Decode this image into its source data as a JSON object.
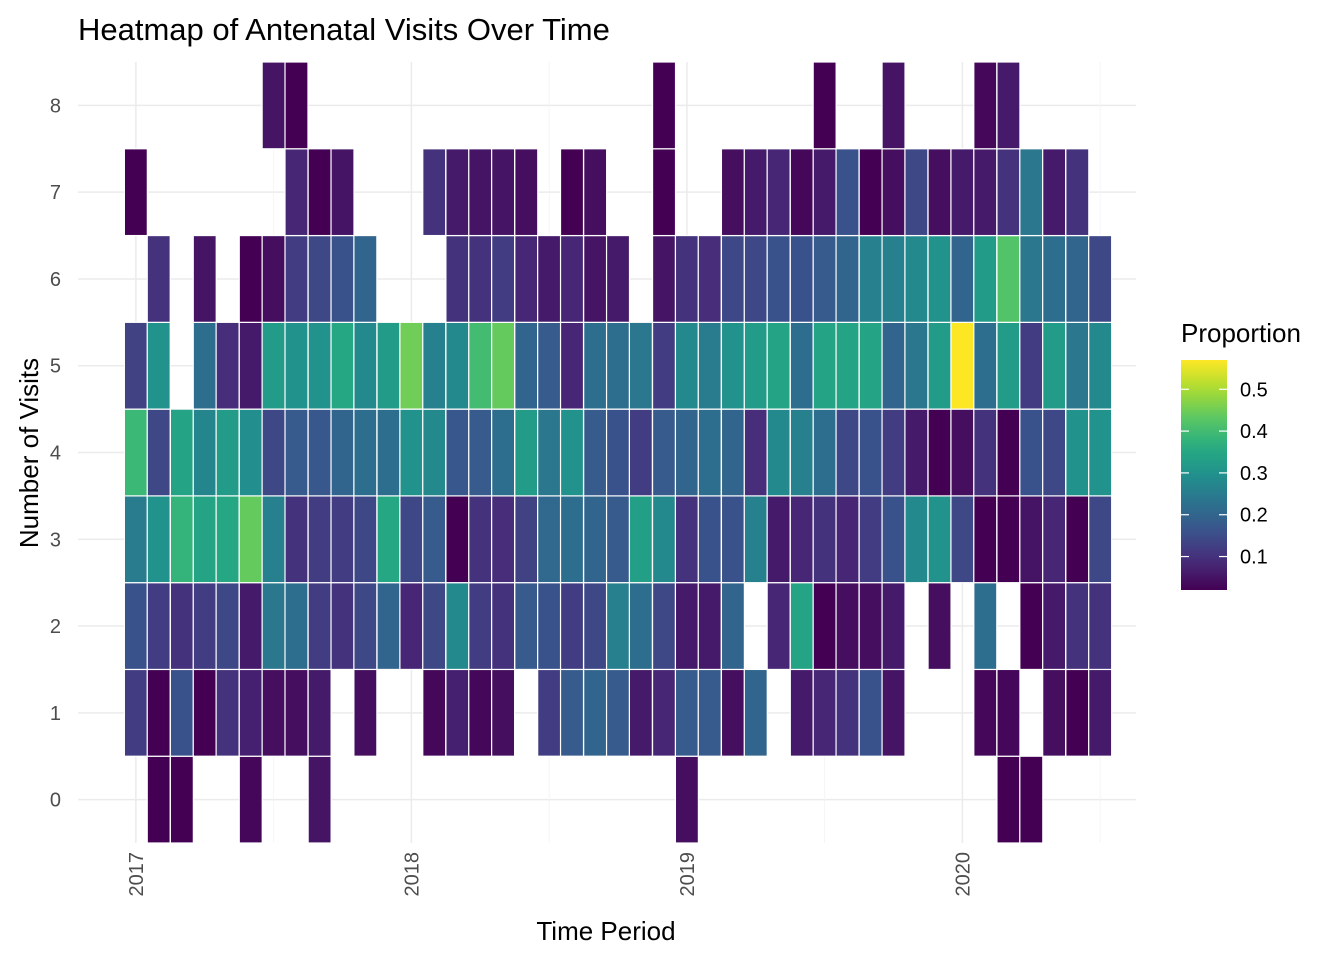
{
  "chart_data": {
    "type": "heatmap",
    "title": "Heatmap of Antenatal Visits Over Time",
    "xlabel": "Time Period",
    "ylabel": "Number of Visits",
    "x_tick_labels": [
      "2017",
      "2018",
      "2019",
      "2020"
    ],
    "x_tick_values": [
      2017.0,
      2018.0,
      2019.0,
      2020.0
    ],
    "y_tick_labels": [
      "0",
      "1",
      "2",
      "3",
      "4",
      "5",
      "6",
      "7",
      "8"
    ],
    "y_values": [
      0,
      1,
      2,
      3,
      4,
      5,
      6,
      7,
      8
    ],
    "xlim": [
      2016.79,
      2020.63
    ],
    "ylim": [
      -0.5,
      8.5
    ],
    "x_step": 0.0833333,
    "legend": {
      "title": "Proportion",
      "position": "right",
      "colormap": "viridis",
      "range": [
        0.02,
        0.57
      ],
      "tick_labels": [
        "0.1",
        "0.2",
        "0.3",
        "0.4",
        "0.5"
      ],
      "tick_values": [
        0.1,
        0.2,
        0.3,
        0.4,
        0.5
      ]
    },
    "grid": true,
    "x": [
      2017.0,
      2017.083,
      2017.167,
      2017.25,
      2017.333,
      2017.417,
      2017.5,
      2017.583,
      2017.667,
      2017.75,
      2017.833,
      2017.917,
      2018.0,
      2018.083,
      2018.167,
      2018.25,
      2018.333,
      2018.417,
      2018.5,
      2018.583,
      2018.667,
      2018.75,
      2018.833,
      2018.917,
      2019.0,
      2019.083,
      2019.167,
      2019.25,
      2019.333,
      2019.417,
      2019.5,
      2019.583,
      2019.667,
      2019.75,
      2019.833,
      2019.917,
      2020.0,
      2020.083,
      2020.167,
      2020.25,
      2020.333,
      2020.417,
      2020.5
    ],
    "values": [
      [
        null,
        0.12,
        0.16,
        0.25,
        0.39,
        0.13,
        null,
        0.02,
        null
      ],
      [
        0.02,
        0.02,
        0.12,
        0.3,
        0.14,
        0.3,
        0.1,
        null,
        null
      ],
      [
        0.02,
        0.16,
        0.1,
        0.38,
        0.34,
        null,
        null,
        null,
        null
      ],
      [
        null,
        0.02,
        0.12,
        0.34,
        0.27,
        0.22,
        0.05,
        null,
        null
      ],
      [
        null,
        0.1,
        0.14,
        0.35,
        0.32,
        0.09,
        null,
        null,
        null
      ],
      [
        0.03,
        0.07,
        0.06,
        0.44,
        0.29,
        0.06,
        0.02,
        null,
        null
      ],
      [
        null,
        0.04,
        0.24,
        0.26,
        0.14,
        0.32,
        0.04,
        null,
        0.05
      ],
      [
        null,
        0.04,
        0.22,
        0.1,
        0.18,
        0.3,
        0.12,
        0.08,
        0.02
      ],
      [
        0.05,
        0.06,
        0.12,
        0.12,
        0.17,
        0.3,
        0.14,
        0.02,
        null
      ],
      [
        null,
        null,
        0.1,
        0.12,
        0.2,
        0.35,
        0.16,
        0.05,
        null
      ],
      [
        null,
        0.04,
        0.14,
        0.14,
        0.22,
        0.28,
        0.2,
        null,
        null
      ],
      [
        null,
        null,
        0.2,
        0.35,
        0.22,
        0.32,
        null,
        null,
        null
      ],
      [
        null,
        null,
        0.08,
        0.14,
        0.3,
        0.45,
        null,
        null,
        null
      ],
      [
        null,
        0.03,
        0.14,
        0.18,
        0.28,
        0.26,
        null,
        0.1,
        null
      ],
      [
        null,
        0.07,
        0.28,
        0.02,
        0.17,
        0.28,
        0.1,
        0.06,
        null
      ],
      [
        null,
        0.03,
        0.12,
        0.1,
        0.18,
        0.4,
        0.1,
        0.05,
        null
      ],
      [
        null,
        0.04,
        0.1,
        0.09,
        0.22,
        0.44,
        0.12,
        0.05,
        null
      ],
      [
        null,
        null,
        0.18,
        0.13,
        0.32,
        0.2,
        0.08,
        0.04,
        null
      ],
      [
        null,
        0.12,
        0.16,
        0.21,
        0.24,
        0.18,
        0.06,
        null,
        null
      ],
      [
        null,
        0.18,
        0.12,
        0.22,
        0.3,
        0.08,
        0.08,
        0.02,
        null
      ],
      [
        null,
        0.2,
        0.14,
        0.2,
        0.18,
        0.22,
        0.05,
        0.04,
        null
      ],
      [
        null,
        0.18,
        0.26,
        0.18,
        0.16,
        0.22,
        0.06,
        null,
        null
      ],
      [
        null,
        0.06,
        0.22,
        0.33,
        0.12,
        0.24,
        null,
        null,
        null
      ],
      [
        null,
        0.08,
        0.14,
        0.28,
        0.18,
        0.12,
        0.05,
        0.02,
        0.02
      ],
      [
        0.04,
        0.18,
        0.06,
        0.1,
        0.2,
        0.28,
        0.1,
        null,
        null
      ],
      [
        null,
        0.18,
        0.06,
        0.16,
        0.22,
        0.25,
        0.09,
        null,
        null
      ],
      [
        null,
        0.04,
        0.2,
        0.16,
        0.2,
        0.3,
        0.14,
        0.04,
        null
      ],
      [
        null,
        0.2,
        null,
        0.26,
        0.09,
        0.32,
        0.14,
        0.06,
        null
      ],
      [
        null,
        null,
        0.08,
        0.06,
        0.28,
        0.34,
        0.16,
        0.08,
        null
      ],
      [
        null,
        0.06,
        0.34,
        0.08,
        0.26,
        0.22,
        0.16,
        0.03,
        null
      ],
      [
        null,
        0.08,
        0.02,
        0.1,
        0.22,
        0.34,
        0.18,
        0.06,
        0.02
      ],
      [
        null,
        0.1,
        0.04,
        0.08,
        0.14,
        0.34,
        0.2,
        0.16,
        null
      ],
      [
        null,
        0.16,
        0.04,
        0.12,
        0.16,
        0.34,
        0.26,
        0.02,
        null
      ],
      [
        null,
        0.05,
        0.06,
        0.16,
        0.12,
        0.2,
        0.26,
        0.04,
        0.05
      ],
      [
        null,
        null,
        null,
        0.28,
        0.06,
        0.24,
        0.28,
        0.14,
        null
      ],
      [
        null,
        null,
        0.04,
        0.3,
        0.02,
        0.32,
        0.3,
        0.04,
        null
      ],
      [
        null,
        null,
        null,
        0.14,
        0.04,
        0.57,
        0.2,
        0.06,
        null
      ],
      [
        null,
        0.03,
        0.22,
        0.02,
        0.1,
        0.22,
        0.32,
        0.06,
        0.03
      ],
      [
        0.02,
        0.03,
        null,
        0.02,
        0.02,
        0.32,
        0.42,
        0.1,
        0.06
      ],
      [
        0.02,
        null,
        0.02,
        0.05,
        0.16,
        0.12,
        0.24,
        0.24,
        null
      ],
      [
        null,
        0.04,
        0.06,
        0.08,
        0.14,
        0.32,
        0.22,
        0.06,
        null
      ],
      [
        null,
        0.02,
        0.1,
        0.02,
        0.3,
        0.24,
        0.2,
        0.1,
        null
      ],
      [
        null,
        0.06,
        0.1,
        0.14,
        0.3,
        0.28,
        0.14,
        null,
        null
      ]
    ]
  }
}
